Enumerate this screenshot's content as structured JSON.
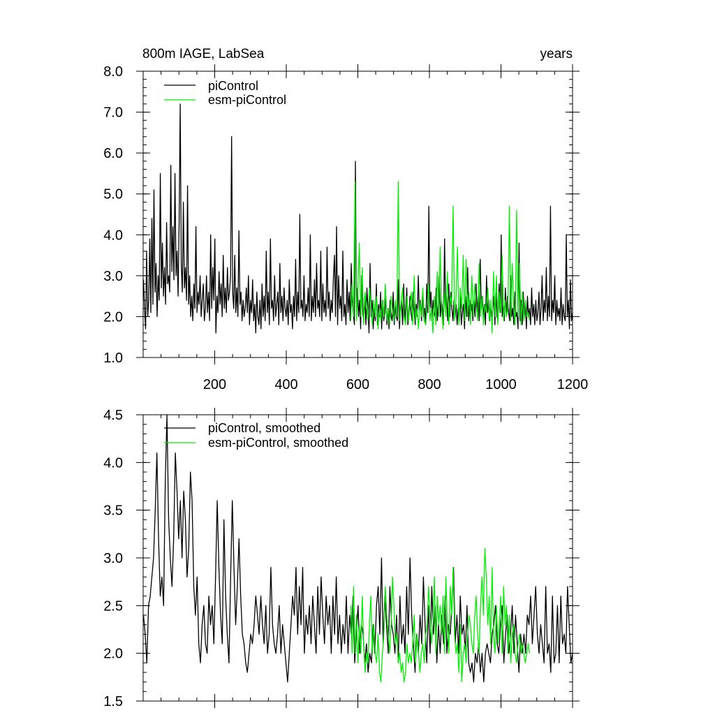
{
  "chart_data": [
    {
      "type": "line",
      "title_left": "800m IAGE, LabSea",
      "title_right": "years",
      "xlim": [
        0,
        1200
      ],
      "ylim": [
        1.0,
        8.0
      ],
      "xticks": [
        200,
        400,
        600,
        800,
        1000,
        1200
      ],
      "xtick_labels": [
        "200",
        "400",
        "600",
        "800",
        "1000",
        "1200"
      ],
      "yticks": [
        1.0,
        2.0,
        3.0,
        4.0,
        5.0,
        6.0,
        7.0,
        8.0
      ],
      "ytick_labels": [
        "1.0",
        "2.0",
        "3.0",
        "4.0",
        "5.0",
        "6.0",
        "7.0",
        "8.0"
      ],
      "legend_position": "top-left",
      "series": [
        {
          "name": "piControl",
          "color": "#000000",
          "x_range": [
            1,
            1200
          ],
          "step": 3,
          "values": [
            2.9,
            2.2,
            1.7,
            3.6,
            2.0,
            2.4,
            3.9,
            2.1,
            4.4,
            2.3,
            5.1,
            2.6,
            3.3,
            2.0,
            3.0,
            2.4,
            5.5,
            2.7,
            3.8,
            2.5,
            3.2,
            2.3,
            4.3,
            2.8,
            3.0,
            2.6,
            5.7,
            3.1,
            4.2,
            2.9,
            5.5,
            3.0,
            3.6,
            2.5,
            4.4,
            7.2,
            3.3,
            2.6,
            4.8,
            2.7,
            3.2,
            2.4,
            5.2,
            2.3,
            3.0,
            2.0,
            2.5,
            1.9,
            2.8,
            2.2,
            4.2,
            2.1,
            2.6,
            2.3,
            3.0,
            2.0,
            2.4,
            2.8,
            1.9,
            2.2,
            3.0,
            2.1,
            2.6,
            1.9,
            4.0,
            2.2,
            3.2,
            2.4,
            3.9,
            1.6,
            2.5,
            2.1,
            3.1,
            2.3,
            2.8,
            2.0,
            3.5,
            2.2,
            2.7,
            2.1,
            3.2,
            2.4,
            2.6,
            3.0,
            6.4,
            2.6,
            2.2,
            3.5,
            2.1,
            2.7,
            2.0,
            4.1,
            2.3,
            2.6,
            1.9,
            2.4,
            2.0,
            2.2,
            2.7,
            2.1,
            3.0,
            1.8,
            2.4,
            2.1,
            2.9,
            1.9,
            2.3,
            1.6,
            2.6,
            2.0,
            1.8,
            2.4,
            1.7,
            2.8,
            2.0,
            2.5,
            1.9,
            3.6,
            2.1,
            2.6,
            1.8,
            3.9,
            2.2,
            2.4,
            1.9,
            3.0,
            2.0,
            2.3,
            2.6,
            1.8,
            3.3,
            2.1,
            2.5,
            1.9,
            2.7,
            2.2,
            2.0,
            2.4,
            1.8,
            2.9,
            2.1,
            2.3,
            1.7,
            2.5,
            2.0,
            3.4,
            1.9,
            2.6,
            2.1,
            4.5,
            2.2,
            2.4,
            2.0,
            3.0,
            1.9,
            2.3,
            2.1,
            2.7,
            2.0,
            4.0,
            1.9,
            2.5,
            2.1,
            2.9,
            2.0,
            3.3,
            2.2,
            2.4,
            2.0,
            3.6,
            1.9,
            2.8,
            2.1,
            2.4,
            2.0,
            3.7,
            2.2,
            2.6,
            1.9,
            2.4,
            2.1,
            2.9,
            3.5,
            2.0,
            4.2,
            1.8,
            3.0,
            2.2,
            2.5,
            1.9,
            3.6,
            2.0,
            2.3,
            1.8,
            2.9,
            2.1,
            2.6,
            1.9,
            3.3,
            2.4,
            2.1,
            1.8,
            5.8,
            2.2,
            2.7,
            2.0,
            2.4,
            1.7,
            3.0,
            2.1,
            1.9,
            2.5,
            1.8,
            2.7,
            2.2,
            1.6,
            3.3,
            2.0,
            2.4,
            1.7,
            2.2,
            1.9,
            2.8,
            1.8,
            2.3,
            2.0,
            2.6,
            1.7,
            2.4,
            1.9,
            2.1,
            2.5,
            1.8,
            2.2,
            1.7,
            2.4,
            2.0,
            1.9,
            2.6,
            1.8,
            2.3,
            2.0,
            1.9,
            2.9,
            1.7,
            2.2,
            2.4,
            1.8,
            2.8,
            1.9,
            2.2,
            2.7,
            1.8,
            2.0,
            2.5,
            2.1,
            1.9,
            2.6,
            2.2,
            1.8,
            2.3,
            2.0,
            3.0,
            2.1,
            2.4,
            1.9,
            2.6,
            2.0,
            2.2,
            1.8,
            2.8,
            2.1,
            4.7,
            2.2,
            2.6,
            1.9,
            2.4,
            2.1,
            2.0,
            2.7,
            1.9,
            2.3,
            3.0,
            2.0,
            2.4,
            2.2,
            1.8,
            3.9,
            2.1,
            2.5,
            1.9,
            2.8,
            2.0,
            2.6,
            2.2,
            1.9,
            2.4,
            2.0,
            2.3,
            1.8,
            2.2,
            1.9,
            2.6,
            1.8,
            2.1,
            2.3,
            1.7,
            2.5,
            2.0,
            3.2,
            1.9,
            2.4,
            2.1,
            2.3,
            1.9,
            2.4,
            2.0,
            2.8,
            2.1,
            2.5,
            1.9,
            3.4,
            2.2,
            2.5,
            2.0,
            2.3,
            1.8,
            3.0,
            2.1,
            2.4,
            1.9,
            2.3,
            2.0,
            2.2,
            2.5,
            1.8,
            2.6,
            2.0,
            1.9,
            2.8,
            2.1,
            4.0,
            2.0,
            2.3,
            1.9,
            2.7,
            2.0,
            2.5,
            2.1,
            1.9,
            3.0,
            2.0,
            2.2,
            1.8,
            2.6,
            2.0,
            2.1,
            1.7,
            3.8,
            1.9,
            2.4,
            1.8,
            2.6,
            2.0,
            2.3,
            1.7,
            2.5,
            2.0,
            2.2,
            1.8,
            2.7,
            2.0,
            2.3,
            1.8,
            2.4,
            1.9,
            2.1,
            2.6,
            1.8,
            2.2,
            3.0,
            1.9,
            2.4,
            2.1,
            3.2,
            1.9,
            2.5,
            2.0,
            4.7,
            1.9,
            2.4,
            2.1,
            3.0,
            1.8,
            2.4,
            2.0,
            2.2,
            1.9,
            2.7,
            1.8,
            2.3,
            2.0,
            1.9,
            4.0,
            2.0,
            2.4,
            1.7,
            2.9,
            1.9,
            2.1
          ]
        },
        {
          "name": "esm-piControl",
          "color": "#00ee00",
          "x_range": [
            580,
            1080
          ],
          "step": 4,
          "values": [
            1.9,
            2.8,
            2.0,
            5.3,
            1.9,
            2.7,
            3.8,
            2.0,
            3.2,
            1.8,
            2.6,
            2.2,
            1.9,
            2.7,
            2.3,
            1.8,
            2.4,
            2.0,
            2.5,
            1.7,
            2.2,
            1.9,
            2.4,
            2.0,
            2.8,
            1.9,
            2.2,
            1.8,
            2.5,
            2.1,
            1.9,
            2.4,
            2.0,
            5.3,
            1.9,
            2.3,
            2.7,
            2.0,
            1.8,
            2.5,
            1.9,
            2.2,
            2.6,
            1.8,
            3.0,
            1.9,
            2.2,
            1.7,
            2.4,
            2.0,
            2.7,
            1.9,
            1.8,
            2.3,
            2.8,
            1.9,
            2.2,
            1.6,
            2.5,
            1.8,
            3.1,
            2.0,
            3.7,
            2.2,
            1.7,
            2.6,
            2.0,
            3.1,
            1.8,
            2.5,
            2.3,
            4.7,
            1.9,
            2.4,
            3.7,
            1.8,
            2.7,
            2.2,
            3.5,
            1.9,
            3.4,
            2.0,
            2.6,
            1.8,
            3.0,
            2.0,
            2.8,
            2.3,
            1.9,
            3.3,
            2.0,
            2.5,
            1.8,
            2.3,
            2.1,
            2.7,
            1.9,
            2.4,
            1.6,
            3.1,
            2.0,
            3.0,
            1.8,
            2.6,
            2.1,
            3.5,
            1.9,
            2.4,
            2.0,
            2.2,
            4.7,
            1.9,
            3.3,
            2.2,
            1.8,
            4.6,
            2.0,
            3.3,
            1.8,
            2.6,
            1.9,
            2.4,
            2.0,
            2.1,
            1.9
          ]
        }
      ]
    },
    {
      "type": "line",
      "xlim": [
        0,
        1200
      ],
      "ylim": [
        1.5,
        4.5
      ],
      "xticks": [
        200,
        400,
        600,
        800,
        1000,
        1200
      ],
      "xtick_labels": [],
      "yticks": [
        1.5,
        2.0,
        2.5,
        3.0,
        3.5,
        4.0,
        4.5
      ],
      "ytick_labels": [
        "1.5",
        "2.0",
        "2.5",
        "3.0",
        "3.5",
        "4.0",
        "4.5"
      ],
      "legend_position": "top-left",
      "series": [
        {
          "name": "piControl, smoothed",
          "color": "#000000",
          "x_range": [
            1,
            1200
          ],
          "step": 4,
          "values": [
            2.4,
            2.2,
            1.9,
            2.5,
            2.6,
            2.8,
            3.0,
            3.5,
            4.1,
            3.2,
            2.6,
            2.8,
            2.5,
            3.8,
            4.5,
            3.4,
            3.0,
            2.7,
            3.2,
            4.1,
            3.7,
            3.2,
            3.6,
            3.0,
            3.7,
            3.4,
            2.8,
            3.1,
            3.9,
            3.6,
            2.7,
            2.4,
            2.8,
            2.1,
            1.9,
            2.3,
            2.5,
            2.1,
            2.0,
            2.6,
            2.3,
            2.5,
            2.1,
            2.8,
            3.6,
            2.9,
            2.4,
            2.1,
            3.4,
            2.6,
            2.2,
            1.9,
            2.8,
            3.6,
            2.9,
            2.3,
            2.7,
            3.2,
            2.6,
            2.2,
            2.1,
            1.9,
            1.8,
            2.0,
            2.2,
            2.1,
            2.3,
            2.6,
            2.4,
            2.2,
            2.6,
            2.3,
            2.1,
            2.5,
            2.0,
            2.2,
            2.9,
            2.3,
            2.1,
            2.0,
            2.2,
            2.5,
            2.0,
            2.3,
            2.1,
            1.9,
            1.7,
            2.0,
            2.3,
            2.6,
            2.4,
            2.9,
            2.2,
            2.7,
            2.3,
            2.9,
            2.0,
            2.4,
            2.2,
            2.5,
            2.1,
            2.6,
            2.3,
            2.0,
            2.7,
            2.2,
            2.8,
            2.4,
            2.1,
            2.6,
            2.3,
            2.5,
            2.0,
            2.6,
            2.2,
            2.8,
            2.1,
            2.4,
            2.0,
            2.3,
            2.1,
            2.6,
            2.0,
            2.4,
            2.2,
            2.6,
            1.9,
            2.2,
            2.5,
            2.0,
            2.3,
            2.2,
            1.9,
            2.1,
            1.8,
            2.0,
            1.9,
            2.3,
            2.0,
            2.5,
            2.7,
            2.2,
            3.0,
            2.1,
            2.6,
            2.3,
            2.0,
            2.7,
            2.3,
            2.2,
            2.0,
            2.4,
            1.9,
            2.6,
            2.1,
            2.3,
            2.0,
            2.7,
            2.2,
            3.0,
            2.4,
            2.1,
            1.8,
            2.2,
            2.0,
            2.4,
            2.1,
            2.8,
            2.3,
            1.9,
            2.5,
            2.0,
            2.7,
            2.2,
            2.5,
            1.9,
            2.3,
            2.0,
            2.4,
            2.1,
            2.6,
            2.0,
            2.3,
            2.2,
            2.5,
            2.9,
            2.1,
            2.4,
            2.0,
            2.6,
            2.2,
            2.3,
            2.0,
            2.5,
            1.9,
            1.8,
            1.9,
            1.7,
            2.0,
            1.9,
            2.1,
            1.8,
            2.0,
            1.7,
            2.0,
            2.1,
            2.0,
            1.9,
            2.2,
            2.3,
            2.5,
            2.1,
            2.0,
            2.3,
            2.5,
            1.9,
            2.2,
            2.4,
            2.0,
            2.2,
            2.5,
            2.0,
            2.4,
            2.1,
            1.8,
            2.2,
            2.0,
            2.2,
            2.0,
            2.4,
            2.3,
            2.6,
            2.1,
            2.4,
            2.7,
            2.2,
            2.0,
            2.3,
            2.1,
            1.9,
            2.7,
            2.0,
            2.1,
            1.8,
            2.6,
            1.9,
            2.0,
            2.5,
            1.9,
            2.6,
            2.1,
            2.2,
            2.0,
            2.7,
            2.3,
            1.9,
            2.0
          ]
        },
        {
          "name": "esm-piControl, smoothed",
          "color": "#00ee00",
          "x_range": [
            580,
            1080
          ],
          "step": 4,
          "values": [
            2.5,
            2.0,
            2.7,
            2.0,
            2.4,
            1.9,
            2.3,
            2.0,
            2.6,
            2.1,
            1.8,
            2.0,
            1.9,
            2.3,
            2.6,
            2.0,
            2.3,
            2.0,
            1.9,
            2.2,
            1.8,
            1.7,
            2.0,
            2.2,
            2.7,
            2.4,
            2.2,
            2.0,
            2.3,
            2.8,
            2.5,
            2.1,
            2.2,
            1.9,
            2.0,
            1.8,
            1.9,
            1.7,
            1.8,
            2.1,
            1.9,
            2.0,
            1.9,
            2.1,
            2.4,
            1.9,
            2.2,
            2.0,
            1.8,
            2.0,
            2.1,
            1.9,
            2.2,
            2.3,
            2.7,
            2.4,
            2.1,
            2.3,
            2.8,
            2.0,
            2.6,
            2.3,
            2.5,
            2.2,
            2.6,
            2.0,
            2.8,
            2.3,
            2.0,
            2.7,
            2.4,
            2.9,
            2.2,
            2.0,
            2.1,
            1.8,
            2.3,
            1.7,
            2.0,
            2.1,
            1.9,
            2.2,
            2.4,
            2.3,
            2.1,
            2.0,
            2.4,
            2.6,
            2.2,
            2.0,
            2.5,
            2.8,
            2.4,
            3.1,
            2.8,
            2.3,
            2.6,
            2.1,
            2.9,
            2.2,
            2.0,
            2.5,
            2.1,
            2.3,
            2.6,
            2.0,
            2.7,
            2.3,
            2.5,
            2.0,
            2.4,
            1.9,
            2.2,
            2.3,
            2.0,
            1.9,
            2.1,
            2.2,
            2.0,
            2.1,
            2.0,
            1.9,
            2.0,
            2.1,
            2.0
          ]
        }
      ]
    }
  ]
}
